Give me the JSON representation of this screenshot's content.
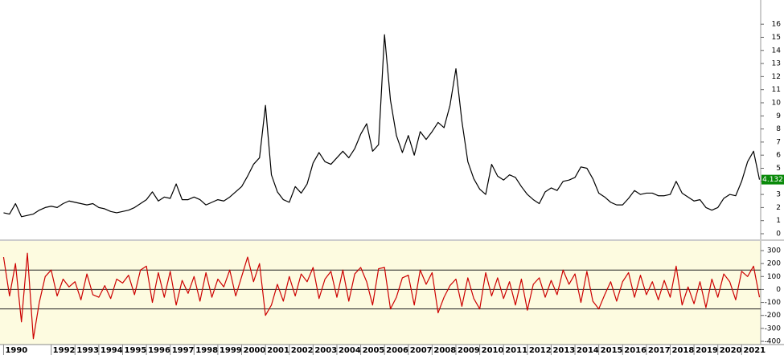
{
  "chart_data": [
    {
      "type": "line",
      "x": [
        1990,
        1990.25,
        1990.5,
        1990.75,
        1991,
        1991.25,
        1991.5,
        1991.75,
        1992,
        1992.25,
        1992.5,
        1992.75,
        1993,
        1993.25,
        1993.5,
        1993.75,
        1994,
        1994.25,
        1994.5,
        1994.75,
        1995,
        1995.25,
        1995.5,
        1995.75,
        1996,
        1996.25,
        1996.5,
        1996.75,
        1997,
        1997.25,
        1997.5,
        1997.75,
        1998,
        1998.25,
        1998.5,
        1998.75,
        1999,
        1999.25,
        1999.5,
        1999.75,
        2000,
        2000.25,
        2000.5,
        2000.75,
        2001,
        2001.25,
        2001.5,
        2001.75,
        2002,
        2002.25,
        2002.5,
        2002.75,
        2003,
        2003.25,
        2003.5,
        2003.75,
        2004,
        2004.25,
        2004.5,
        2004.75,
        2005,
        2005.25,
        2005.5,
        2005.75,
        2006,
        2006.25,
        2006.5,
        2006.75,
        2007,
        2007.25,
        2007.5,
        2007.75,
        2008,
        2008.25,
        2008.5,
        2008.75,
        2009,
        2009.25,
        2009.5,
        2009.75,
        2010,
        2010.25,
        2010.5,
        2010.75,
        2011,
        2011.25,
        2011.5,
        2011.75,
        2012,
        2012.25,
        2012.5,
        2012.75,
        2013,
        2013.25,
        2013.5,
        2013.75,
        2014,
        2014.25,
        2014.5,
        2014.75,
        2015,
        2015.25,
        2015.5,
        2015.75,
        2016,
        2016.25,
        2016.5,
        2016.75,
        2017,
        2017.25,
        2017.5,
        2017.75,
        2018,
        2018.25,
        2018.5,
        2018.75,
        2019,
        2019.25,
        2019.5,
        2019.75,
        2020,
        2020.25,
        2020.5,
        2020.75,
        2021,
        2021.25,
        2021.5,
        2021.75
      ],
      "series": [
        {
          "color": "#000000",
          "values": [
            1.6,
            1.5,
            2.3,
            1.3,
            1.4,
            1.5,
            1.8,
            2.0,
            2.1,
            2.0,
            2.3,
            2.5,
            2.4,
            2.3,
            2.2,
            2.3,
            2.0,
            1.9,
            1.7,
            1.6,
            1.7,
            1.8,
            2.0,
            2.3,
            2.6,
            3.2,
            2.5,
            2.8,
            2.7,
            3.8,
            2.6,
            2.6,
            2.8,
            2.6,
            2.2,
            2.4,
            2.6,
            2.5,
            2.8,
            3.2,
            3.6,
            4.4,
            5.3,
            5.8,
            9.8,
            4.5,
            3.2,
            2.6,
            2.4,
            3.6,
            3.1,
            3.8,
            5.4,
            6.2,
            5.5,
            5.3,
            5.8,
            6.3,
            5.8,
            6.5,
            7.6,
            8.4,
            6.3,
            6.8,
            15.2,
            10.2,
            7.5,
            6.2,
            7.5,
            6.0,
            7.8,
            7.2,
            7.8,
            8.5,
            8.1,
            9.8,
            12.6,
            8.6,
            5.5,
            4.2,
            3.4,
            3.0,
            5.3,
            4.4,
            4.1,
            4.5,
            4.3,
            3.6,
            3.0,
            2.6,
            2.3,
            3.2,
            3.5,
            3.3,
            4.0,
            4.1,
            4.3,
            5.1,
            5.0,
            4.2,
            3.1,
            2.8,
            2.4,
            2.2,
            2.2,
            2.7,
            3.3,
            3.0,
            3.1,
            3.1,
            2.9,
            2.9,
            3.0,
            4.0,
            3.1,
            2.8,
            2.5,
            2.6,
            2.0,
            1.8,
            2.0,
            2.7,
            3.0,
            2.9,
            4.0,
            5.5,
            6.3,
            4.132
          ]
        }
      ],
      "last_marker": {
        "value": 4.132,
        "label": "4.132"
      },
      "xlim": [
        1989.85,
        2021.8
      ],
      "ylim": [
        0,
        16.5
      ],
      "yticks": [
        0,
        1,
        2,
        3,
        4,
        5,
        6,
        7,
        8,
        9,
        10,
        11,
        12,
        13,
        14,
        15,
        16
      ]
    },
    {
      "type": "line",
      "x": [
        1990,
        1990.25,
        1990.5,
        1990.75,
        1991,
        1991.25,
        1991.5,
        1991.75,
        1992,
        1992.25,
        1992.5,
        1992.75,
        1993,
        1993.25,
        1993.5,
        1993.75,
        1994,
        1994.25,
        1994.5,
        1994.75,
        1995,
        1995.25,
        1995.5,
        1995.75,
        1996,
        1996.25,
        1996.5,
        1996.75,
        1997,
        1997.25,
        1997.5,
        1997.75,
        1998,
        1998.25,
        1998.5,
        1998.75,
        1999,
        1999.25,
        1999.5,
        1999.75,
        2000,
        2000.25,
        2000.5,
        2000.75,
        2001,
        2001.25,
        2001.5,
        2001.75,
        2002,
        2002.25,
        2002.5,
        2002.75,
        2003,
        2003.25,
        2003.5,
        2003.75,
        2004,
        2004.25,
        2004.5,
        2004.75,
        2005,
        2005.25,
        2005.5,
        2005.75,
        2006,
        2006.25,
        2006.5,
        2006.75,
        2007,
        2007.25,
        2007.5,
        2007.75,
        2008,
        2008.25,
        2008.5,
        2008.75,
        2009,
        2009.25,
        2009.5,
        2009.75,
        2010,
        2010.25,
        2010.5,
        2010.75,
        2011,
        2011.25,
        2011.5,
        2011.75,
        2012,
        2012.25,
        2012.5,
        2012.75,
        2013,
        2013.25,
        2013.5,
        2013.75,
        2014,
        2014.25,
        2014.5,
        2014.75,
        2015,
        2015.25,
        2015.5,
        2015.75,
        2016,
        2016.25,
        2016.5,
        2016.75,
        2017,
        2017.25,
        2017.5,
        2017.75,
        2018,
        2018.25,
        2018.5,
        2018.75,
        2019,
        2019.25,
        2019.5,
        2019.75,
        2020,
        2020.25,
        2020.5,
        2020.75,
        2021,
        2021.25,
        2021.5,
        2021.75
      ],
      "series": [
        {
          "color": "#cc0000",
          "values": [
            250,
            -50,
            200,
            -250,
            280,
            -380,
            -100,
            100,
            150,
            -50,
            80,
            20,
            60,
            -80,
            120,
            -40,
            -60,
            30,
            -70,
            80,
            50,
            110,
            -40,
            150,
            180,
            -100,
            130,
            -60,
            140,
            -120,
            70,
            -30,
            100,
            -90,
            130,
            -60,
            80,
            20,
            150,
            -50,
            100,
            250,
            60,
            200,
            -200,
            -120,
            40,
            -90,
            100,
            -50,
            120,
            60,
            170,
            -70,
            80,
            140,
            -60,
            150,
            -90,
            120,
            170,
            60,
            -120,
            160,
            170,
            -150,
            -60,
            90,
            110,
            -120,
            150,
            40,
            130,
            -180,
            -60,
            30,
            80,
            -130,
            90,
            -70,
            -150,
            130,
            -50,
            90,
            -70,
            60,
            -120,
            80,
            -160,
            40,
            90,
            -60,
            70,
            -40,
            150,
            40,
            120,
            -100,
            140,
            -90,
            -150,
            -40,
            60,
            -90,
            60,
            130,
            -60,
            110,
            -40,
            60,
            -80,
            70,
            -60,
            180,
            -120,
            20,
            -110,
            60,
            -140,
            80,
            -60,
            120,
            60,
            -80,
            140,
            100,
            180,
            -60
          ]
        }
      ],
      "hlines": [
        150,
        0,
        -150
      ],
      "background": "#fdfbe0",
      "xlim": [
        1989.85,
        2021.8
      ],
      "xticks": [
        1990,
        1992,
        1993,
        1994,
        1995,
        1996,
        1997,
        1998,
        1999,
        2000,
        2001,
        2002,
        2003,
        2004,
        2005,
        2006,
        2007,
        2008,
        2009,
        2010,
        2011,
        2012,
        2013,
        2014,
        2015,
        2016,
        2017,
        2018,
        2019,
        2020,
        2021
      ],
      "ylim": [
        -400,
        300
      ],
      "yticks": [
        -400,
        -300,
        -200,
        -100,
        0,
        100,
        200,
        300
      ]
    }
  ]
}
